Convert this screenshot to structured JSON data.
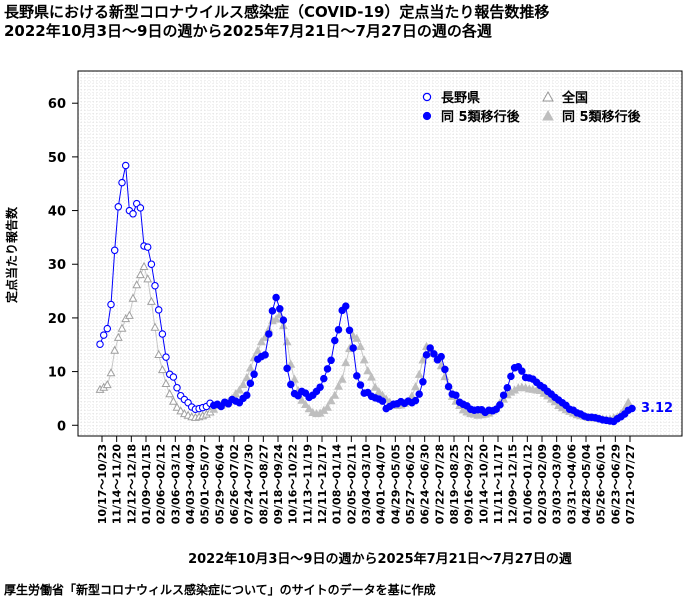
{
  "title_line1": "長野県における新型コロナウイルス感染症（COVID-19）定点当たり報告数推移",
  "title_line2": "2022年10月3日～9日の週から2025年7月21日～7月27日の週の各週",
  "source": "厚生労働省「新型コロナウィルス感染症について」のサイトのデータを基に作成",
  "colors": {
    "nagano": "#0000ff",
    "national": "#bebebe",
    "grid": "#cfcfcf"
  },
  "chart_data": {
    "type": "line",
    "ylabel": "定点当たり報告数",
    "xlabel": "2022年10月3日～9日の週から2025年7月21日～7月27日の週",
    "ylim": [
      -2,
      66
    ],
    "yticks": [
      0,
      10,
      20,
      30,
      40,
      50,
      60
    ],
    "grid": true,
    "legend_position": "top-right",
    "legend": [
      "長野県",
      "同 5類移行後",
      "全国",
      "同 5類移行後"
    ],
    "last_value_label": "3.12",
    "x_tick_labels": [
      "10/17～10/23",
      "11/14～11/20",
      "12/12～12/18",
      "01/09～01/15",
      "02/06～02/12",
      "03/06～03/12",
      "04/03～04/09",
      "05/01～05/07",
      "05/29～06/04",
      "06/26～07/02",
      "07/24～07/30",
      "08/21～08/27",
      "09/18～09/24",
      "10/16～10/22",
      "11/13～11/19",
      "12/11～12/17",
      "01/08～01/14",
      "02/05～02/11",
      "03/04～03/10",
      "04/01～04/07",
      "04/29～05/05",
      "05/27～06/02",
      "06/24～06/30",
      "07/22～07/28",
      "08/19～08/25",
      "09/16～09/22",
      "10/14～10/20",
      "11/11～11/17",
      "12/09～12/15",
      "01/06～01/12",
      "02/03～02/09",
      "03/03～03/09",
      "03/31～04/06",
      "04/28～05/04",
      "05/26～06/01",
      "06/23～06/29",
      "07/21～07/27"
    ],
    "series": [
      {
        "name": "長野県",
        "post_5rui_from_index": 31,
        "values": [
          15.1,
          16.8,
          18.0,
          22.5,
          32.6,
          40.7,
          45.2,
          48.4,
          40.0,
          39.4,
          41.3,
          40.5,
          33.4,
          33.2,
          30.0,
          26.0,
          21.5,
          17.0,
          12.7,
          9.5,
          9.0,
          7.0,
          5.5,
          4.8,
          4.2,
          3.4,
          3.0,
          3.1,
          3.3,
          3.5,
          4.1,
          3.7,
          3.9,
          3.5,
          4.3,
          4.0,
          4.8,
          4.5,
          4.2,
          5.0,
          5.6,
          7.8,
          9.5,
          12.3,
          12.8,
          13.1,
          17.0,
          21.3,
          23.8,
          21.7,
          19.6,
          10.6,
          7.6,
          5.9,
          5.5,
          6.3,
          6.0,
          5.2,
          5.6,
          6.3,
          7.1,
          8.7,
          10.5,
          12.1,
          15.8,
          17.8,
          21.4,
          22.2,
          17.7,
          14.4,
          9.2,
          7.5,
          6.0,
          6.1,
          5.4,
          5.1,
          4.9,
          4.5,
          3.1,
          3.5,
          3.9,
          4.0,
          4.4,
          4.1,
          4.5,
          4.2,
          4.6,
          5.8,
          8.1,
          13.1,
          14.4,
          13.3,
          12.2,
          12.8,
          10.4,
          7.2,
          5.8,
          5.6,
          4.3,
          3.9,
          3.6,
          3.0,
          2.8,
          2.9,
          2.9,
          2.4,
          2.8,
          2.7,
          3.0,
          3.8,
          5.6,
          7.0,
          9.1,
          10.7,
          10.9,
          10.1,
          8.9,
          8.8,
          8.6,
          8.0,
          7.4,
          7.0,
          6.3,
          5.8,
          5.2,
          4.7,
          4.2,
          3.7,
          3.0,
          2.8,
          2.3,
          2.1,
          1.7,
          1.5,
          1.5,
          1.4,
          1.2,
          1.0,
          0.9,
          0.8,
          0.7,
          1.2,
          1.6,
          2.1,
          2.8,
          3.12
        ]
      },
      {
        "name": "全国",
        "post_5rui_from_index": 31,
        "values": [
          6.6,
          7.0,
          7.5,
          9.7,
          13.9,
          16.3,
          18.0,
          19.8,
          20.4,
          23.6,
          26.1,
          28.0,
          29.5,
          27.2,
          23.0,
          18.2,
          13.1,
          10.3,
          7.7,
          5.8,
          4.4,
          3.3,
          2.6,
          2.1,
          1.8,
          1.5,
          1.4,
          1.5,
          1.7,
          2.0,
          2.4,
          2.9,
          3.6,
          3.6,
          3.9,
          4.3,
          4.9,
          5.8,
          6.5,
          7.5,
          8.8,
          10.6,
          12.5,
          13.8,
          15.5,
          16.3,
          17.8,
          19.4,
          19.7,
          20.5,
          18.5,
          15.5,
          11.3,
          8.5,
          6.4,
          4.6,
          3.8,
          3.0,
          2.3,
          2.1,
          2.2,
          2.7,
          3.3,
          4.5,
          5.5,
          7.2,
          8.5,
          11.6,
          14.2,
          16.6,
          16.1,
          14.6,
          12.1,
          10.1,
          8.9,
          7.0,
          6.2,
          5.5,
          4.8,
          4.2,
          3.8,
          3.6,
          3.7,
          4.0,
          4.3,
          5.4,
          7.1,
          9.4,
          12.1,
          14.6,
          14.0,
          13.3,
          12.4,
          11.0,
          9.0,
          7.3,
          5.3,
          4.4,
          3.6,
          2.8,
          2.4,
          2.1,
          2.0,
          1.8,
          1.9,
          2.0,
          2.2,
          2.6,
          3.1,
          4.1,
          4.8,
          5.6,
          6.1,
          6.5,
          6.9,
          7.0,
          6.9,
          6.7,
          6.6,
          6.5,
          6.4,
          5.9,
          5.4,
          4.8,
          4.3,
          3.6,
          3.2,
          2.8,
          2.5,
          2.2,
          1.9,
          1.7,
          1.6,
          1.4,
          1.3,
          1.3,
          1.2,
          1.1,
          1.0,
          1.1,
          1.3,
          1.5,
          2.1,
          3.0,
          4.2
        ]
      }
    ]
  }
}
